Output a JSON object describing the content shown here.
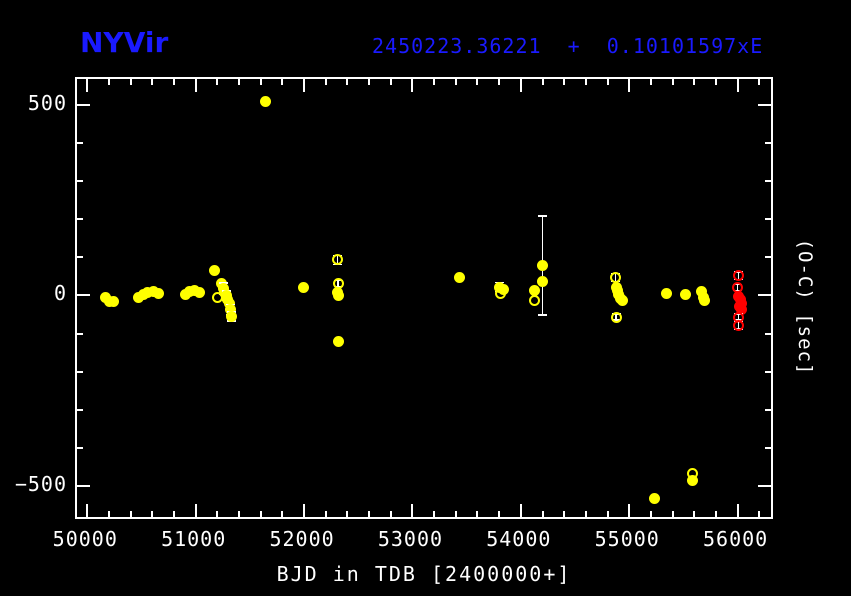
{
  "header": {
    "title": "NYVir",
    "ephemeris": "2450223.36221  +  0.10101597xE",
    "accent_color": "#1a1aff"
  },
  "axes": {
    "x_title": "BJD in TDB [2400000+]",
    "y_title": "(O-C) [sec]",
    "x_min": 49905,
    "x_max": 56345,
    "y_min": -592,
    "y_max": 568,
    "x_major_ticks": [
      {
        "value": 50000,
        "label": "50000"
      },
      {
        "value": 51000,
        "label": "51000"
      },
      {
        "value": 52000,
        "label": "52000"
      },
      {
        "value": 53000,
        "label": "53000"
      },
      {
        "value": 54000,
        "label": "54000"
      },
      {
        "value": 55000,
        "label": "55000"
      },
      {
        "value": 56000,
        "label": "56000"
      }
    ],
    "x_minor_step": 200,
    "y_major_ticks": [
      {
        "value": 500,
        "label": "500"
      },
      {
        "value": 0,
        "label": "0"
      },
      {
        "value": -500,
        "label": "−500"
      }
    ],
    "y_minor_step": 100,
    "frame_color": "#ffffff"
  },
  "chart_data": {
    "type": "scatter",
    "title": "NYVir",
    "xlabel": "BJD in TDB [2400000+]",
    "ylabel": "(O-C) [sec]",
    "xlim": [
      49905,
      56345
    ],
    "ylim": [
      -592,
      568
    ],
    "grid": false,
    "legend": "none",
    "series": [
      {
        "name": "yellow-filled-minima",
        "marker": "filled",
        "color": "#ffff00",
        "points": [
          {
            "x": 50170,
            "y": -5
          },
          {
            "x": 50205,
            "y": -15
          },
          {
            "x": 50245,
            "y": -17
          },
          {
            "x": 50470,
            "y": -6
          },
          {
            "x": 50515,
            "y": 2
          },
          {
            "x": 50555,
            "y": 8
          },
          {
            "x": 50610,
            "y": 10
          },
          {
            "x": 50655,
            "y": 4
          },
          {
            "x": 50910,
            "y": 3
          },
          {
            "x": 50945,
            "y": 9
          },
          {
            "x": 50985,
            "y": 13
          },
          {
            "x": 51035,
            "y": 8
          },
          {
            "x": 51175,
            "y": 65
          },
          {
            "x": 51240,
            "y": 32
          },
          {
            "x": 51255,
            "y": 18,
            "err": 14
          },
          {
            "x": 51270,
            "y": 8
          },
          {
            "x": 51285,
            "y": 0,
            "err": 12
          },
          {
            "x": 51295,
            "y": -10
          },
          {
            "x": 51310,
            "y": -22
          },
          {
            "x": 51320,
            "y": -38,
            "err": 14
          },
          {
            "x": 51330,
            "y": -55,
            "err": 12
          },
          {
            "x": 51645,
            "y": 510
          },
          {
            "x": 51995,
            "y": 21
          },
          {
            "x": 52310,
            "y": 8
          },
          {
            "x": 52320,
            "y": 1
          },
          {
            "x": 52315,
            "y": -122
          },
          {
            "x": 53435,
            "y": 46
          },
          {
            "x": 53800,
            "y": 22,
            "err": 12
          },
          {
            "x": 53840,
            "y": 16
          },
          {
            "x": 54200,
            "y": 79,
            "err": 130
          },
          {
            "x": 54200,
            "y": 36
          },
          {
            "x": 54130,
            "y": 14
          },
          {
            "x": 54880,
            "y": 22
          },
          {
            "x": 54890,
            "y": 12
          },
          {
            "x": 54900,
            "y": 3
          },
          {
            "x": 54915,
            "y": -8
          },
          {
            "x": 54935,
            "y": -14
          },
          {
            "x": 55230,
            "y": -533
          },
          {
            "x": 55345,
            "y": 4
          },
          {
            "x": 55520,
            "y": 3
          },
          {
            "x": 55580,
            "y": -487
          },
          {
            "x": 55670,
            "y": 10
          },
          {
            "x": 55685,
            "y": -5
          },
          {
            "x": 55695,
            "y": -13
          }
        ]
      },
      {
        "name": "yellow-open-minima",
        "marker": "open",
        "color": "#ffff00",
        "points": [
          {
            "x": 51200,
            "y": -5
          },
          {
            "x": 52310,
            "y": 93,
            "err": 12
          },
          {
            "x": 52315,
            "y": 31,
            "err": 8
          },
          {
            "x": 53810,
            "y": 4
          },
          {
            "x": 54125,
            "y": -12
          },
          {
            "x": 54875,
            "y": 47,
            "err": 10
          },
          {
            "x": 54880,
            "y": -57,
            "err": 8
          },
          {
            "x": 55580,
            "y": -468
          }
        ]
      },
      {
        "name": "red-filled-minima",
        "marker": "filled",
        "color": "#ff0000",
        "points": [
          {
            "x": 56010,
            "y": -2
          },
          {
            "x": 56025,
            "y": -10
          },
          {
            "x": 56040,
            "y": -20
          },
          {
            "x": 56020,
            "y": -28
          },
          {
            "x": 56035,
            "y": -38
          }
        ]
      },
      {
        "name": "red-open-minima",
        "marker": "open",
        "color": "#ff0000",
        "points": [
          {
            "x": 56010,
            "y": 52,
            "err": 10
          },
          {
            "x": 56000,
            "y": 21,
            "err": 8
          },
          {
            "x": 56010,
            "y": -57,
            "err": 8
          },
          {
            "x": 56010,
            "y": -78,
            "err": 10
          }
        ]
      }
    ]
  }
}
